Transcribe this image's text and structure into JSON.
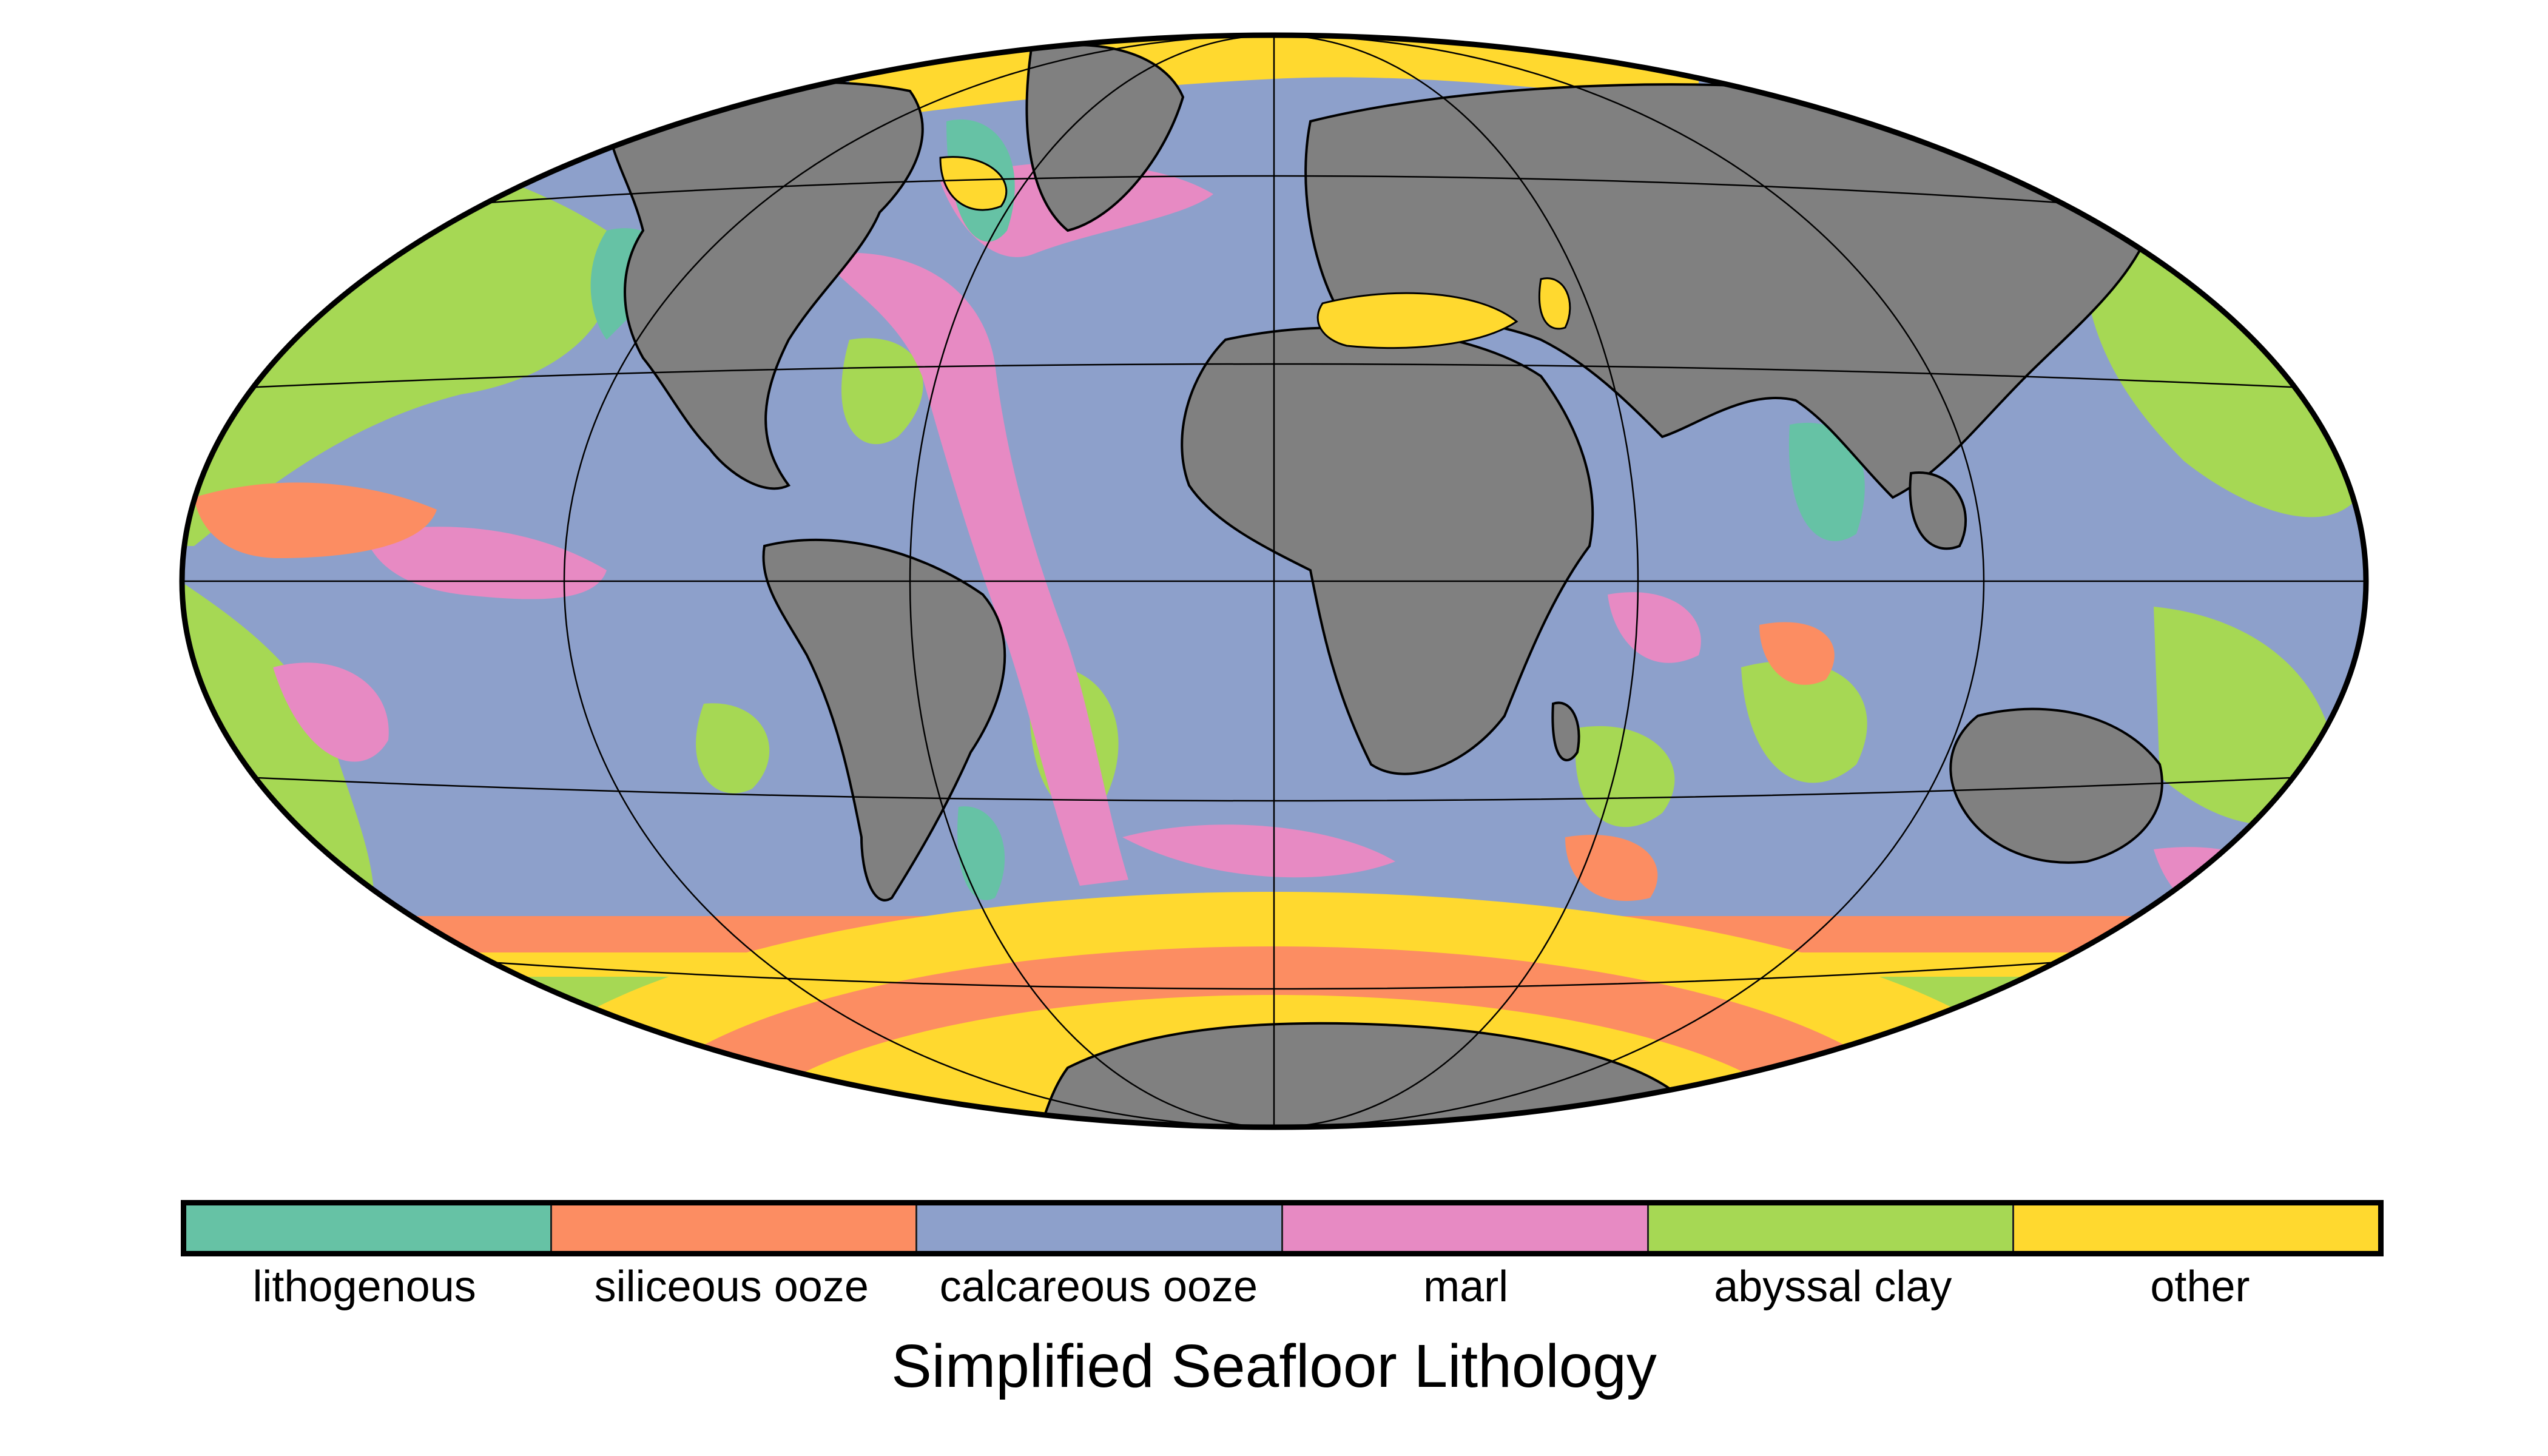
{
  "map": {
    "projection": "Hammer-Aitoff",
    "land_color": "#808080",
    "graticule_color": "#000000",
    "outline_color": "#000000"
  },
  "legend": {
    "categories": [
      {
        "label": "lithogenous",
        "color": "#66c2a5"
      },
      {
        "label": "siliceous ooze",
        "color": "#fc8d62"
      },
      {
        "label": "calcareous ooze",
        "color": "#8da0cb"
      },
      {
        "label": "marl",
        "color": "#e78ac3"
      },
      {
        "label": "abyssal clay",
        "color": "#a6d854"
      },
      {
        "label": "other",
        "color": "#ffd92f"
      }
    ]
  },
  "title": "Simplified Seafloor Lithology"
}
